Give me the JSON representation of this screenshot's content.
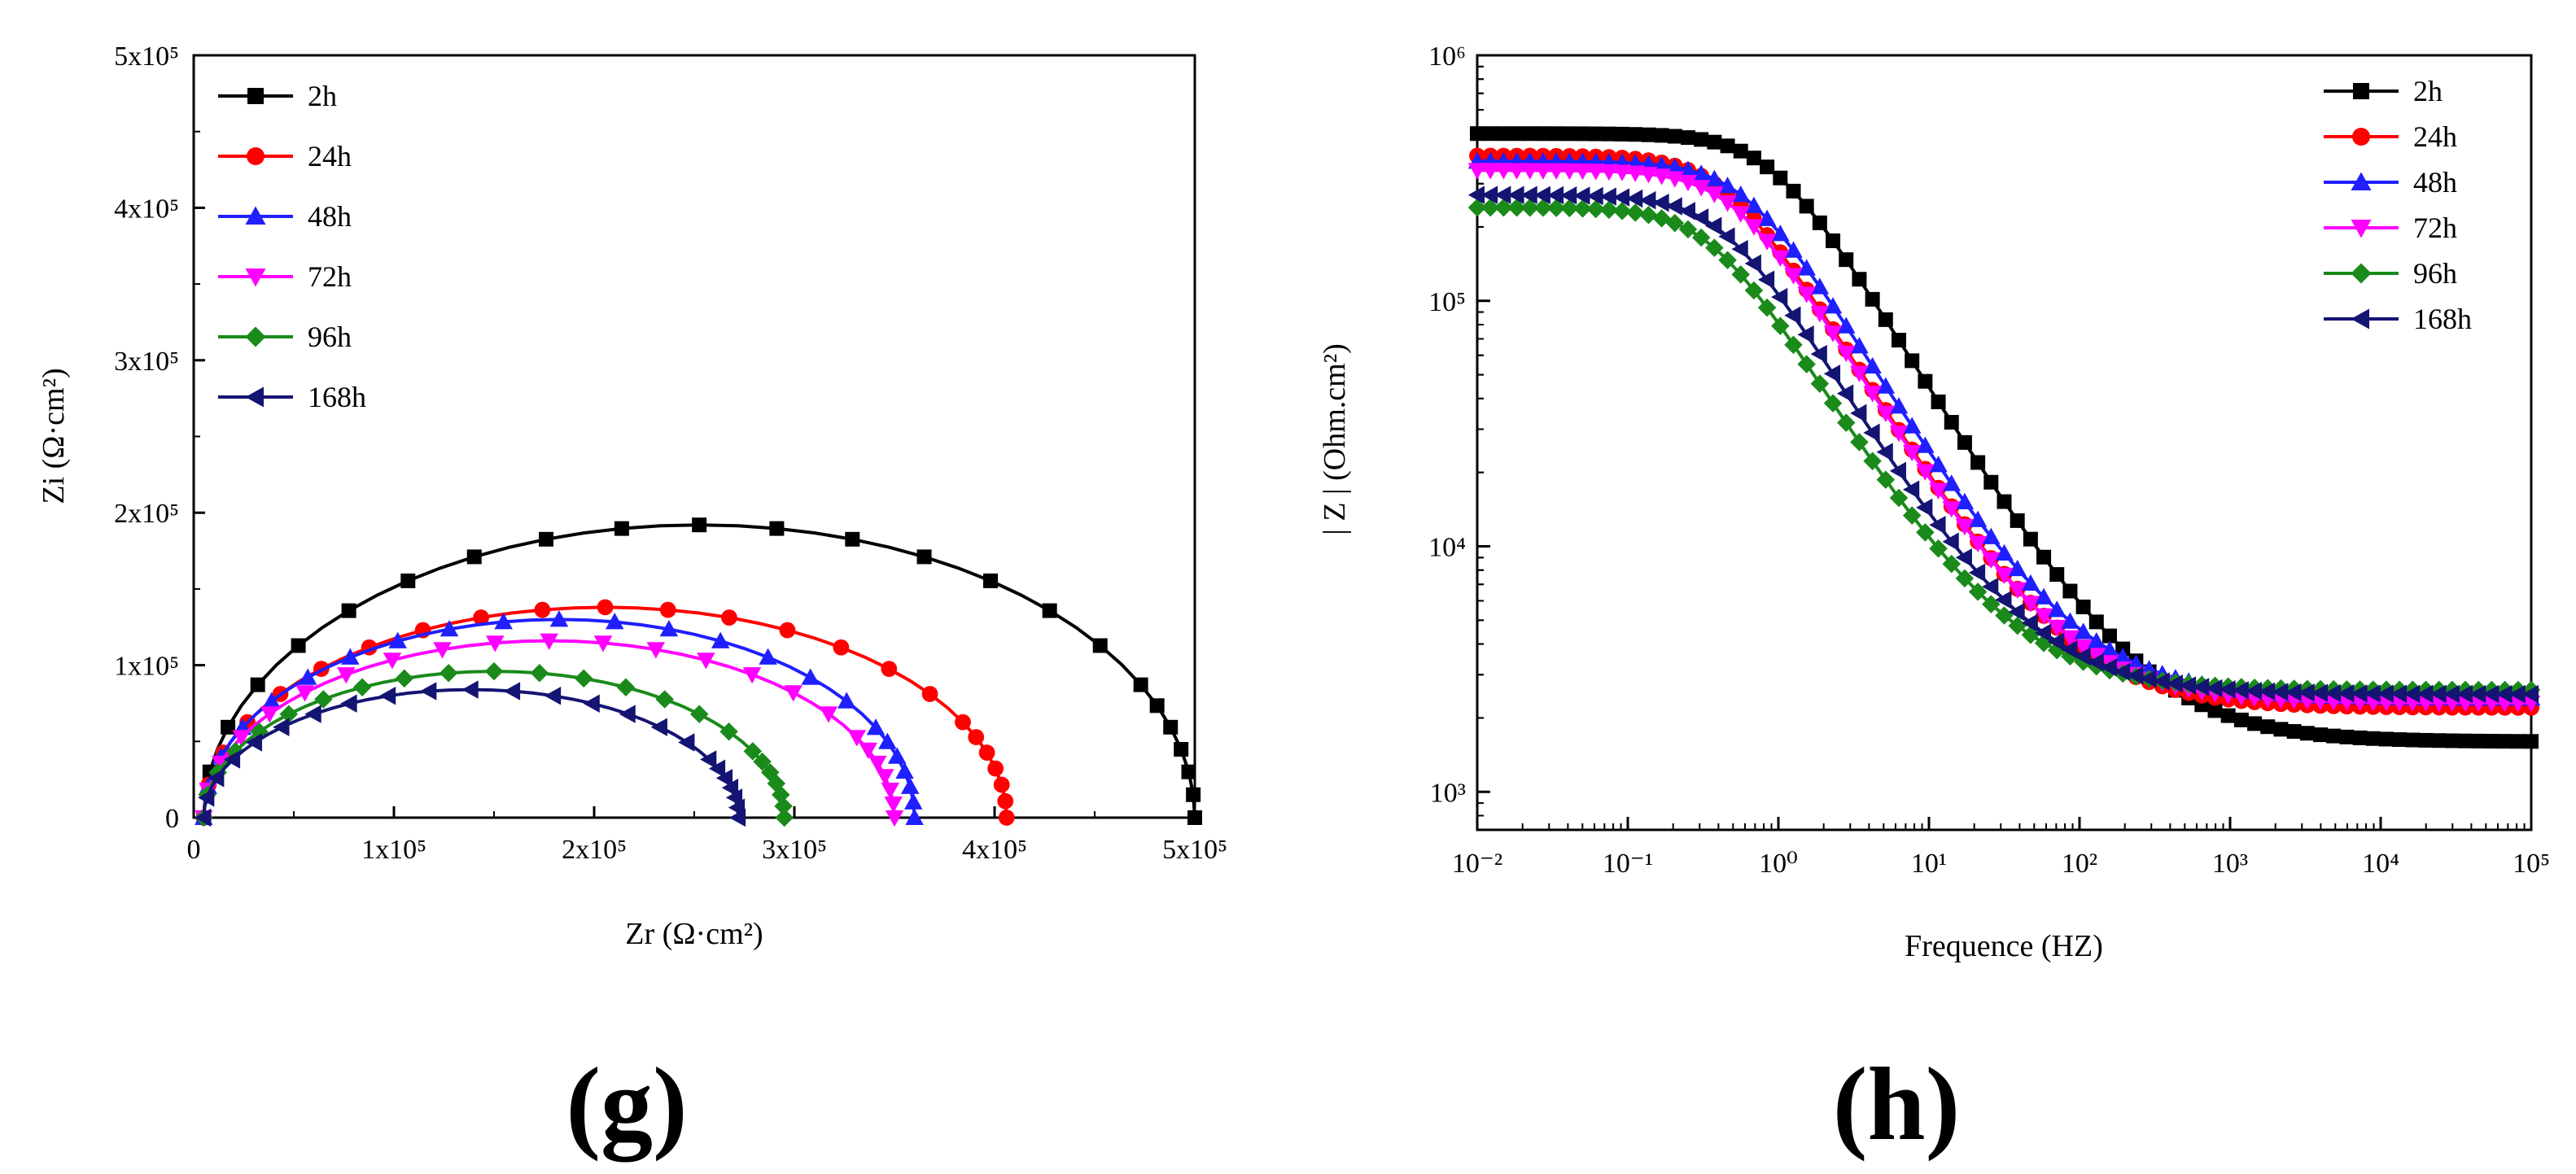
{
  "figure": {
    "panel_g_label": "(g)",
    "panel_h_label": "(h)"
  },
  "series_styles": [
    {
      "name": "2h",
      "color": "#000000",
      "marker": "square"
    },
    {
      "name": "24h",
      "color": "#ff0000",
      "marker": "circle"
    },
    {
      "name": "48h",
      "color": "#1f1fff",
      "marker": "triangle-up"
    },
    {
      "name": "72h",
      "color": "#ff00ff",
      "marker": "triangle-down"
    },
    {
      "name": "96h",
      "color": "#1a8a1a",
      "marker": "diamond"
    },
    {
      "name": "168h",
      "color": "#141473",
      "marker": "triangle-left"
    }
  ],
  "chart_data": [
    {
      "id": "nyquist",
      "type": "scatter",
      "title": "",
      "xlabel": "Zr (Ω·cm²)",
      "ylabel": "Zi (Ω·cm²)",
      "xlim": [
        0,
        500000
      ],
      "ylim": [
        0,
        500000
      ],
      "x_tick_labels": [
        "0",
        "1x10⁵",
        "2x10⁵",
        "3x10⁵",
        "4x10⁵",
        "5x10⁵"
      ],
      "y_tick_labels": [
        "0",
        "1x10⁵",
        "2x10⁵",
        "3x10⁵",
        "4x10⁵",
        "5x10⁵"
      ],
      "legend": "top-left",
      "series": [
        {
          "name": "2h",
          "r0": 5000,
          "r1": 500000,
          "peak": 192000
        },
        {
          "name": "24h",
          "r0": 5000,
          "r1": 406000,
          "peak": 138000
        },
        {
          "name": "48h",
          "r0": 5000,
          "r1": 360000,
          "peak": 130000
        },
        {
          "name": "72h",
          "r0": 5000,
          "r1": 350000,
          "peak": 116000
        },
        {
          "name": "96h",
          "r0": 5000,
          "r1": 295000,
          "peak": 96000
        },
        {
          "name": "168h",
          "r0": 5000,
          "r1": 272000,
          "peak": 84000
        }
      ]
    },
    {
      "id": "bode",
      "type": "scatter",
      "title": "",
      "xlabel": "Frequence (HZ)",
      "ylabel": "| Z | (Ohm.cm²)",
      "xscale": "log",
      "yscale": "log",
      "xlim": [
        0.01,
        100000
      ],
      "ylim": [
        700,
        1000000
      ],
      "x_tick_labels": [
        "10⁻²",
        "10⁻¹",
        "10⁰",
        "10¹",
        "10²",
        "10³",
        "10⁴",
        "10⁵"
      ],
      "y_tick_labels": [
        "10³",
        "10⁴",
        "10⁵",
        "10⁶"
      ],
      "legend": "top-right",
      "series": [
        {
          "name": "2h",
          "z_low": 480000,
          "fc": 0.9,
          "z_high": 1600
        },
        {
          "name": "24h",
          "z_low": 390000,
          "fc": 0.45,
          "z_high": 2200
        },
        {
          "name": "48h",
          "z_low": 370000,
          "fc": 0.6,
          "z_high": 2400
        },
        {
          "name": "72h",
          "z_low": 340000,
          "fc": 0.5,
          "z_high": 2300
        },
        {
          "name": "96h",
          "z_low": 240000,
          "fc": 0.35,
          "z_high": 2600
        },
        {
          "name": "168h",
          "z_low": 270000,
          "fc": 0.42,
          "z_high": 2500
        }
      ]
    }
  ]
}
